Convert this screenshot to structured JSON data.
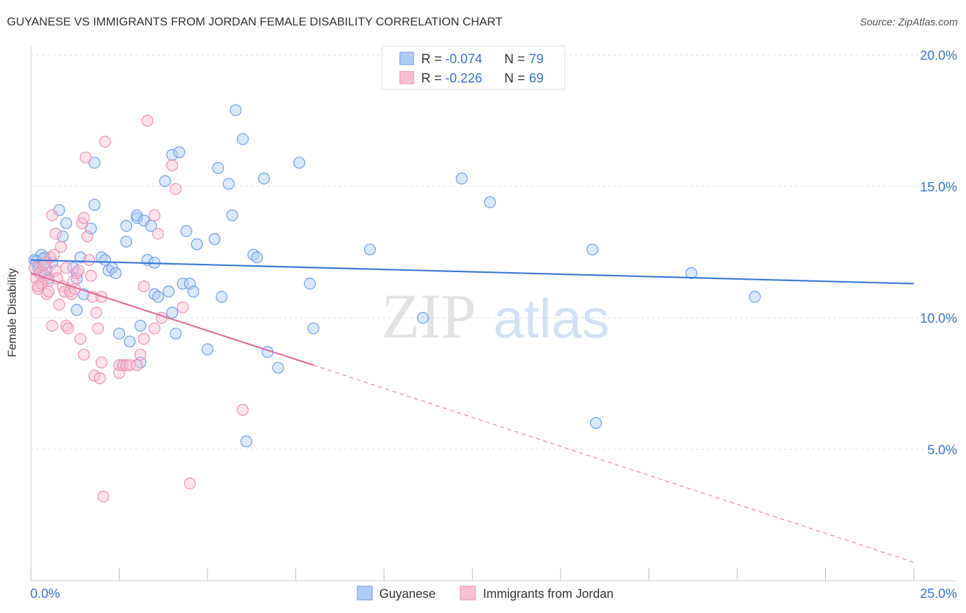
{
  "title": "GUYANESE VS IMMIGRANTS FROM JORDAN FEMALE DISABILITY CORRELATION CHART",
  "source": "Source: ZipAtlas.com",
  "watermark": {
    "zip": "ZIP",
    "atlas": "atlas"
  },
  "colors": {
    "blue": "#6d9ee6",
    "blue_fill": "#aecbf3",
    "blue_line": "#3a78d6",
    "pink": "#ec8fb0",
    "pink_fill": "#f7bfd2",
    "pink_line": "#e06d98",
    "tick_blue": "#3b74d1",
    "grid": "#dddddd"
  },
  "chart_data": {
    "type": "scatter",
    "title": "GUYANESE VS IMMIGRANTS FROM JORDAN FEMALE DISABILITY CORRELATION CHART",
    "xlabel": "",
    "ylabel": "Female Disability",
    "xlim": [
      0,
      25
    ],
    "ylim": [
      0,
      20
    ],
    "x_tick_labels": [
      {
        "value": 0,
        "label": "0.0%"
      },
      {
        "value": 25,
        "label": "25.0%"
      }
    ],
    "y_tick_labels": [
      {
        "value": 5,
        "label": "5.0%"
      },
      {
        "value": 10,
        "label": "10.0%"
      },
      {
        "value": 15,
        "label": "15.0%"
      },
      {
        "value": 20,
        "label": "20.0%"
      }
    ],
    "grid": "horizontal dashed",
    "legend_position": "top-center",
    "legend": [
      {
        "r_label": "R = ",
        "r_value": "-0.074",
        "n_label": "N = ",
        "n_value": "79"
      },
      {
        "r_label": "R = ",
        "r_value": "-0.226",
        "n_label": "N = ",
        "n_value": "69"
      }
    ],
    "bottom_legend": [
      "Guyanese",
      "Immigrants from Jordan"
    ],
    "series": [
      {
        "name": "Guyanese",
        "color": "#6d9ee6",
        "trend": {
          "x0": 0,
          "y0": 12.2,
          "x1": 25,
          "y1": 11.3
        },
        "points": [
          [
            0.1,
            12.2
          ],
          [
            0.2,
            12.0
          ],
          [
            0.3,
            11.8
          ],
          [
            0.4,
            12.3
          ],
          [
            0.5,
            11.5
          ],
          [
            0.6,
            12.1
          ],
          [
            0.3,
            12.4
          ],
          [
            0.2,
            11.9
          ],
          [
            0.8,
            14.1
          ],
          [
            1.0,
            13.6
          ],
          [
            0.9,
            13.1
          ],
          [
            1.2,
            11.9
          ],
          [
            1.3,
            11.5
          ],
          [
            1.4,
            12.3
          ],
          [
            1.5,
            10.9
          ],
          [
            1.3,
            10.3
          ],
          [
            1.7,
            13.4
          ],
          [
            1.8,
            14.3
          ],
          [
            1.8,
            15.9
          ],
          [
            2.0,
            12.3
          ],
          [
            2.1,
            12.2
          ],
          [
            2.2,
            11.8
          ],
          [
            2.3,
            11.9
          ],
          [
            2.4,
            11.7
          ],
          [
            2.5,
            9.4
          ],
          [
            2.6,
            8.2
          ],
          [
            2.7,
            13.5
          ],
          [
            2.7,
            12.9
          ],
          [
            2.8,
            9.1
          ],
          [
            3.0,
            13.8
          ],
          [
            3.0,
            13.9
          ],
          [
            3.1,
            9.7
          ],
          [
            3.1,
            8.3
          ],
          [
            3.2,
            13.7
          ],
          [
            3.3,
            12.2
          ],
          [
            3.4,
            13.5
          ],
          [
            3.5,
            12.1
          ],
          [
            3.5,
            10.9
          ],
          [
            3.6,
            10.8
          ],
          [
            3.8,
            15.2
          ],
          [
            3.9,
            11.0
          ],
          [
            4.0,
            16.2
          ],
          [
            4.0,
            10.2
          ],
          [
            4.1,
            9.4
          ],
          [
            4.2,
            16.3
          ],
          [
            4.3,
            11.3
          ],
          [
            4.4,
            13.3
          ],
          [
            4.5,
            11.3
          ],
          [
            4.6,
            11.0
          ],
          [
            4.7,
            12.8
          ],
          [
            5.0,
            8.8
          ],
          [
            5.2,
            13.0
          ],
          [
            5.3,
            15.7
          ],
          [
            5.4,
            10.8
          ],
          [
            5.6,
            15.1
          ],
          [
            5.7,
            13.9
          ],
          [
            5.8,
            17.9
          ],
          [
            6.0,
            16.8
          ],
          [
            6.1,
            5.3
          ],
          [
            6.3,
            12.4
          ],
          [
            6.4,
            12.3
          ],
          [
            6.6,
            15.3
          ],
          [
            6.7,
            8.7
          ],
          [
            7.0,
            8.1
          ],
          [
            7.6,
            15.9
          ],
          [
            7.9,
            11.3
          ],
          [
            8.0,
            9.6
          ],
          [
            9.6,
            12.6
          ],
          [
            11.1,
            10.0
          ],
          [
            12.2,
            15.3
          ],
          [
            13.0,
            14.4
          ],
          [
            15.9,
            12.6
          ],
          [
            16.0,
            6.0
          ],
          [
            18.7,
            11.7
          ],
          [
            20.5,
            10.8
          ],
          [
            0.15,
            12.15
          ],
          [
            0.25,
            11.95
          ],
          [
            0.35,
            12.25
          ],
          [
            0.45,
            11.85
          ]
        ]
      },
      {
        "name": "Immigrants from Jordan",
        "color": "#ec8fb0",
        "trend": {
          "x0": 0,
          "y0": 11.7,
          "x1": 8.0,
          "y1": 8.2
        },
        "trend_dashed": {
          "x0": 8.0,
          "y0": 8.2,
          "x1": 25,
          "y1": 0.7
        },
        "points": [
          [
            0.1,
            11.9
          ],
          [
            0.15,
            11.5
          ],
          [
            0.2,
            11.1
          ],
          [
            0.25,
            11.7
          ],
          [
            0.3,
            11.3
          ],
          [
            0.35,
            12.0
          ],
          [
            0.4,
            11.6
          ],
          [
            0.45,
            10.9
          ],
          [
            0.5,
            11.4
          ],
          [
            0.55,
            12.3
          ],
          [
            0.6,
            13.9
          ],
          [
            0.6,
            9.7
          ],
          [
            0.7,
            13.2
          ],
          [
            0.7,
            11.8
          ],
          [
            0.75,
            11.5
          ],
          [
            0.8,
            10.5
          ],
          [
            0.85,
            12.7
          ],
          [
            0.9,
            11.2
          ],
          [
            0.95,
            11.0
          ],
          [
            1.0,
            9.7
          ],
          [
            1.0,
            11.9
          ],
          [
            1.05,
            9.6
          ],
          [
            1.1,
            11.0
          ],
          [
            1.15,
            10.9
          ],
          [
            1.2,
            11.4
          ],
          [
            1.25,
            11.1
          ],
          [
            1.3,
            11.7
          ],
          [
            1.35,
            11.8
          ],
          [
            1.4,
            9.2
          ],
          [
            1.45,
            13.6
          ],
          [
            1.5,
            13.8
          ],
          [
            1.5,
            8.6
          ],
          [
            1.55,
            16.1
          ],
          [
            1.6,
            13.1
          ],
          [
            1.65,
            12.2
          ],
          [
            1.7,
            11.6
          ],
          [
            1.75,
            10.8
          ],
          [
            1.8,
            7.8
          ],
          [
            1.85,
            10.2
          ],
          [
            1.9,
            9.6
          ],
          [
            1.95,
            7.7
          ],
          [
            2.0,
            10.8
          ],
          [
            2.0,
            8.3
          ],
          [
            2.05,
            3.2
          ],
          [
            2.1,
            16.7
          ],
          [
            2.5,
            8.2
          ],
          [
            2.5,
            7.9
          ],
          [
            2.6,
            8.2
          ],
          [
            2.7,
            8.2
          ],
          [
            2.8,
            8.2
          ],
          [
            3.0,
            8.2
          ],
          [
            3.1,
            8.6
          ],
          [
            3.2,
            9.2
          ],
          [
            3.2,
            11.2
          ],
          [
            3.3,
            17.5
          ],
          [
            3.5,
            9.6
          ],
          [
            3.6,
            13.2
          ],
          [
            3.7,
            10.0
          ],
          [
            4.0,
            15.8
          ],
          [
            4.1,
            14.9
          ],
          [
            4.3,
            10.4
          ],
          [
            4.5,
            3.7
          ],
          [
            6.0,
            6.5
          ],
          [
            0.3,
            11.3
          ],
          [
            0.4,
            12.1
          ],
          [
            0.5,
            11.0
          ],
          [
            0.65,
            12.4
          ],
          [
            0.2,
            11.2
          ],
          [
            3.5,
            13.9
          ]
        ]
      }
    ]
  }
}
